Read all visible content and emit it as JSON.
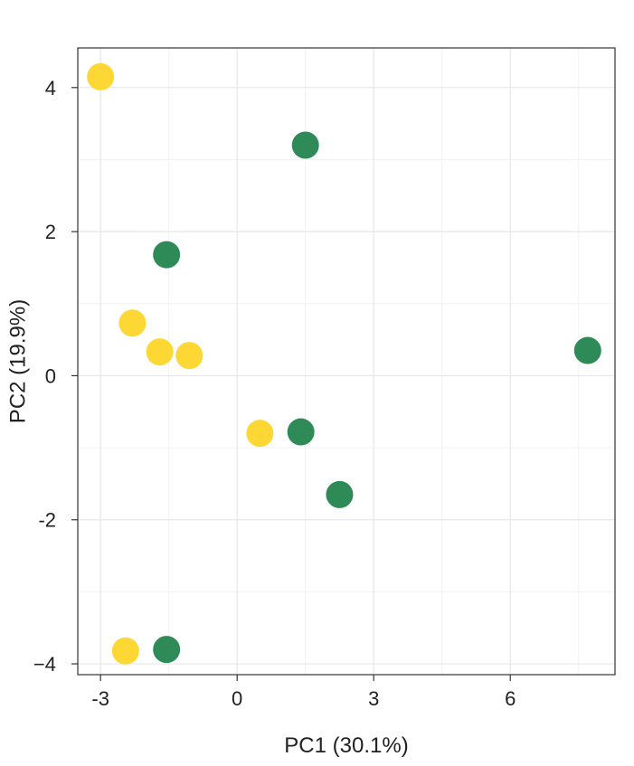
{
  "chart_data": {
    "type": "scatter",
    "title": "",
    "xlabel": "PC1 (30.1%)",
    "ylabel": "PC2 (19.9%)",
    "xlim": [
      -3.5,
      8.3
    ],
    "ylim": [
      -4.15,
      4.55
    ],
    "x_ticks": [
      -3,
      0,
      3,
      6
    ],
    "y_ticks": [
      -4,
      -2,
      0,
      2,
      4
    ],
    "x_tick_labels": [
      "-3",
      "0",
      "3",
      "6"
    ],
    "y_tick_labels": [
      "−4",
      "-2",
      "0",
      "2",
      "4"
    ],
    "grid": true,
    "legend": "none",
    "series": [
      {
        "color": "#FDD835",
        "points": [
          {
            "x": -3.0,
            "y": 4.15
          },
          {
            "x": -2.3,
            "y": 0.73
          },
          {
            "x": -1.7,
            "y": 0.33
          },
          {
            "x": -1.05,
            "y": 0.28
          },
          {
            "x": 0.5,
            "y": -0.8
          },
          {
            "x": -2.45,
            "y": -3.82
          }
        ]
      },
      {
        "color": "#2E8B57",
        "points": [
          {
            "x": 1.5,
            "y": 3.2
          },
          {
            "x": -1.55,
            "y": 1.68
          },
          {
            "x": 7.7,
            "y": 0.35
          },
          {
            "x": 1.4,
            "y": -0.78
          },
          {
            "x": 2.25,
            "y": -1.65
          },
          {
            "x": -1.55,
            "y": -3.8
          }
        ]
      }
    ]
  }
}
